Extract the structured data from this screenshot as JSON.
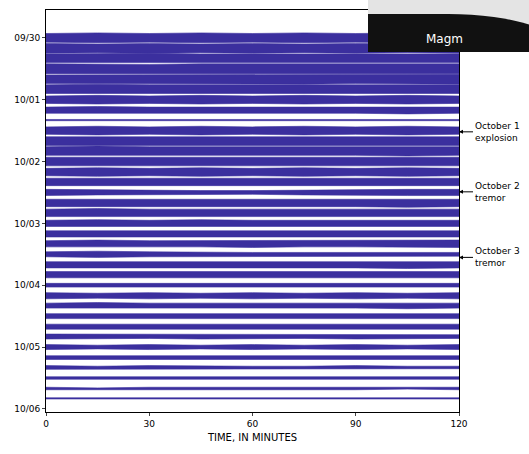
{
  "chart_data": {
    "type": "band",
    "xlabel": "TIME, IN MINUTES",
    "xlim": [
      0,
      120
    ],
    "xticks": [
      0,
      30,
      60,
      90,
      120
    ],
    "ylim": [
      -0.45,
      6.05
    ],
    "yticks": [
      {
        "value": 0,
        "label": "09/30"
      },
      {
        "value": 1,
        "label": "10/01"
      },
      {
        "value": 2,
        "label": "10/02"
      },
      {
        "value": 3,
        "label": "10/03"
      },
      {
        "value": 4,
        "label": "10/04"
      },
      {
        "value": 5,
        "label": "10/05"
      },
      {
        "value": 6,
        "label": "10/06"
      }
    ],
    "color": "#3b2f9e",
    "grid": false,
    "x": [
      0,
      15,
      30,
      45,
      60,
      75,
      90,
      105,
      120
    ],
    "series": [
      {
        "y": 0.0,
        "values": [
          0.07,
          0.08,
          0.07,
          0.08,
          0.07,
          0.08,
          0.07,
          0.08,
          0.07
        ]
      },
      {
        "y": 0.17,
        "values": [
          0.08,
          0.07,
          0.08,
          0.07,
          0.08,
          0.07,
          0.08,
          0.07,
          0.08
        ]
      },
      {
        "y": 0.33,
        "values": [
          0.07,
          0.08,
          0.08,
          0.07,
          0.07,
          0.08,
          0.08,
          0.07,
          0.07
        ]
      },
      {
        "y": 0.5,
        "values": [
          0.08,
          0.07,
          0.07,
          0.08,
          0.08,
          0.07,
          0.07,
          0.08,
          0.08
        ]
      },
      {
        "y": 0.67,
        "values": [
          0.07,
          0.07,
          0.08,
          0.07,
          0.08,
          0.08,
          0.07,
          0.07,
          0.08
        ]
      },
      {
        "y": 0.83,
        "values": [
          0.07,
          0.08,
          0.07,
          0.07,
          0.07,
          0.07,
          0.08,
          0.07,
          0.07
        ]
      },
      {
        "y": 1.0,
        "values": [
          0.06,
          0.07,
          0.06,
          0.07,
          0.06,
          0.07,
          0.06,
          0.07,
          0.06
        ]
      },
      {
        "y": 1.17,
        "values": [
          0.05,
          0.06,
          0.05,
          0.05,
          0.06,
          0.05,
          0.05,
          0.06,
          0.05
        ]
      },
      {
        "y": 1.33,
        "values": [
          0.01,
          0.01,
          0.01,
          0.01,
          0.01,
          0.02,
          0.01,
          0.01,
          0.01
        ]
      },
      {
        "y": 1.5,
        "values": [
          0.06,
          0.07,
          0.06,
          0.07,
          0.06,
          0.07,
          0.06,
          0.07,
          0.06
        ]
      },
      {
        "y": 1.67,
        "values": [
          0.07,
          0.07,
          0.08,
          0.07,
          0.07,
          0.08,
          0.07,
          0.07,
          0.07
        ]
      },
      {
        "y": 1.83,
        "values": [
          0.07,
          0.08,
          0.07,
          0.07,
          0.08,
          0.07,
          0.07,
          0.08,
          0.07
        ]
      },
      {
        "y": 2.0,
        "values": [
          0.07,
          0.07,
          0.07,
          0.08,
          0.07,
          0.07,
          0.08,
          0.07,
          0.07
        ]
      },
      {
        "y": 2.17,
        "values": [
          0.06,
          0.07,
          0.06,
          0.07,
          0.06,
          0.07,
          0.06,
          0.07,
          0.06
        ]
      },
      {
        "y": 2.33,
        "values": [
          0.06,
          0.06,
          0.07,
          0.06,
          0.06,
          0.07,
          0.06,
          0.06,
          0.06
        ]
      },
      {
        "y": 2.5,
        "values": [
          0.05,
          0.04,
          0.03,
          0.03,
          0.03,
          0.04,
          0.05,
          0.05,
          0.05
        ]
      },
      {
        "y": 2.67,
        "values": [
          0.06,
          0.06,
          0.06,
          0.07,
          0.06,
          0.06,
          0.06,
          0.07,
          0.06
        ]
      },
      {
        "y": 2.83,
        "values": [
          0.06,
          0.07,
          0.06,
          0.06,
          0.06,
          0.06,
          0.07,
          0.06,
          0.06
        ]
      },
      {
        "y": 3.0,
        "values": [
          0.05,
          0.06,
          0.05,
          0.06,
          0.05,
          0.05,
          0.06,
          0.05,
          0.05
        ]
      },
      {
        "y": 3.17,
        "values": [
          0.05,
          0.05,
          0.06,
          0.05,
          0.05,
          0.06,
          0.05,
          0.05,
          0.05
        ]
      },
      {
        "y": 3.33,
        "values": [
          0.05,
          0.06,
          0.05,
          0.05,
          0.06,
          0.05,
          0.05,
          0.05,
          0.06
        ]
      },
      {
        "y": 3.5,
        "values": [
          0.04,
          0.05,
          0.04,
          0.03,
          0.03,
          0.03,
          0.03,
          0.03,
          0.03
        ]
      },
      {
        "y": 3.67,
        "values": [
          0.05,
          0.05,
          0.05,
          0.06,
          0.05,
          0.05,
          0.05,
          0.06,
          0.05
        ]
      },
      {
        "y": 3.83,
        "values": [
          0.05,
          0.05,
          0.06,
          0.05,
          0.05,
          0.05,
          0.06,
          0.05,
          0.05
        ]
      },
      {
        "y": 4.0,
        "values": [
          0.03,
          0.03,
          0.03,
          0.03,
          0.03,
          0.03,
          0.03,
          0.03,
          0.03
        ]
      },
      {
        "y": 4.17,
        "values": [
          0.05,
          0.04,
          0.05,
          0.04,
          0.05,
          0.04,
          0.05,
          0.04,
          0.05
        ]
      },
      {
        "y": 4.33,
        "values": [
          0.04,
          0.05,
          0.04,
          0.04,
          0.05,
          0.04,
          0.04,
          0.05,
          0.04
        ]
      },
      {
        "y": 4.5,
        "values": [
          0.04,
          0.04,
          0.05,
          0.04,
          0.04,
          0.05,
          0.04,
          0.04,
          0.04
        ]
      },
      {
        "y": 4.67,
        "values": [
          0.04,
          0.04,
          0.04,
          0.04,
          0.04,
          0.04,
          0.04,
          0.04,
          0.04
        ]
      },
      {
        "y": 4.83,
        "values": [
          0.04,
          0.04,
          0.03,
          0.04,
          0.04,
          0.03,
          0.04,
          0.04,
          0.03
        ]
      },
      {
        "y": 5.0,
        "values": [
          0.04,
          0.03,
          0.04,
          0.03,
          0.04,
          0.03,
          0.04,
          0.03,
          0.04
        ]
      },
      {
        "y": 5.17,
        "values": [
          0.03,
          0.03,
          0.03,
          0.03,
          0.03,
          0.03,
          0.03,
          0.03,
          0.03
        ]
      },
      {
        "y": 5.33,
        "values": [
          0.03,
          0.02,
          0.03,
          0.02,
          0.02,
          0.02,
          0.03,
          0.02,
          0.02
        ]
      },
      {
        "y": 5.5,
        "values": [
          0.02,
          0.02,
          0.02,
          0.03,
          0.02,
          0.02,
          0.02,
          0.02,
          0.02
        ]
      },
      {
        "y": 5.67,
        "values": [
          0.02,
          0.01,
          0.02,
          0.02,
          0.01,
          0.02,
          0.02,
          0.01,
          0.02
        ]
      },
      {
        "y": 5.83,
        "values": [
          0.01,
          0.01,
          0.01,
          0.01,
          0.01,
          0.01,
          0.01,
          0.01,
          0.01
        ]
      }
    ],
    "annotations": [
      {
        "text": "October 1 explosion",
        "y": 1.52
      },
      {
        "text": "October 2 tremor",
        "y": 2.49
      },
      {
        "text": "October 3 tremor",
        "y": 3.55
      }
    ],
    "inset": {
      "text": "Magm"
    }
  }
}
